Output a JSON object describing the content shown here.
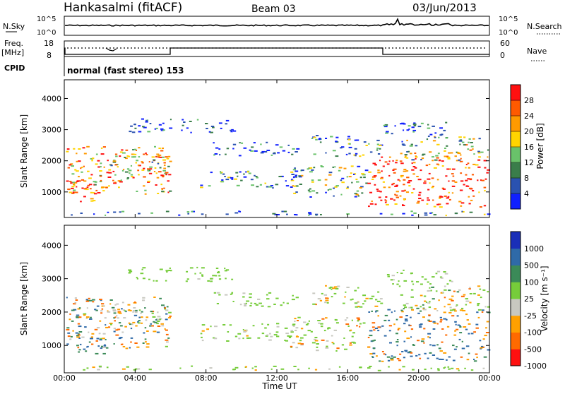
{
  "header": {
    "site": "Hankasalmi (fitACF)",
    "beam": "Beam 03",
    "date": "03/Jun/2013"
  },
  "noise_panel": {
    "left_label": "N.Sky",
    "right_label": "N.Search",
    "left_ticks": [
      "10^5",
      "10^0"
    ],
    "right_ticks": [
      "10^5",
      "10^0"
    ]
  },
  "freq_panel": {
    "left_label_1": "Freq.",
    "left_label_2": "[MHz]",
    "right_label": "Nave",
    "left_ticks": [
      "18",
      "8"
    ],
    "right_ticks": [
      "60",
      "0"
    ]
  },
  "cpid": {
    "label": "CPID",
    "text": "normal (fast stereo) 153"
  },
  "chart_data": [
    {
      "type": "heatmap",
      "panel": "power",
      "ylabel": "Slant Range [km]",
      "y_ticks": [
        "1000",
        "2000",
        "3000",
        "4000"
      ],
      "ylim": [
        180,
        4600
      ],
      "xlim_hours": [
        0,
        24
      ],
      "colorbar": {
        "label": "Power [dB]",
        "ticks": [
          "4",
          "8",
          "12",
          "16",
          "20",
          "24",
          "28"
        ],
        "colors": [
          "#1020ff",
          "#2a52b0",
          "#3a7d4a",
          "#69c26a",
          "#ffd400",
          "#ff9a00",
          "#ff5a00",
          "#ff1010"
        ]
      }
    },
    {
      "type": "heatmap",
      "panel": "velocity",
      "ylabel": "Slant Range [km]",
      "y_ticks": [
        "1000",
        "2000",
        "3000",
        "4000"
      ],
      "ylim": [
        180,
        4600
      ],
      "xlim_hours": [
        0,
        24
      ],
      "colorbar": {
        "label": "Velocity [m s⁻¹]",
        "ticks": [
          "1000",
          "500",
          "100",
          "25",
          "-25",
          "-100",
          "-500",
          "-1000"
        ],
        "colors": [
          "#1a2fb8",
          "#2f6aa8",
          "#3b8a58",
          "#76cc3a",
          "#c8c8c0",
          "#ffa000",
          "#ff6a00",
          "#ff1010"
        ]
      }
    }
  ],
  "x_axis": {
    "ticks": [
      "00:00",
      "04:00",
      "08:00",
      "12:00",
      "16:00",
      "20:00",
      "00:00"
    ],
    "label": "Time UT"
  }
}
